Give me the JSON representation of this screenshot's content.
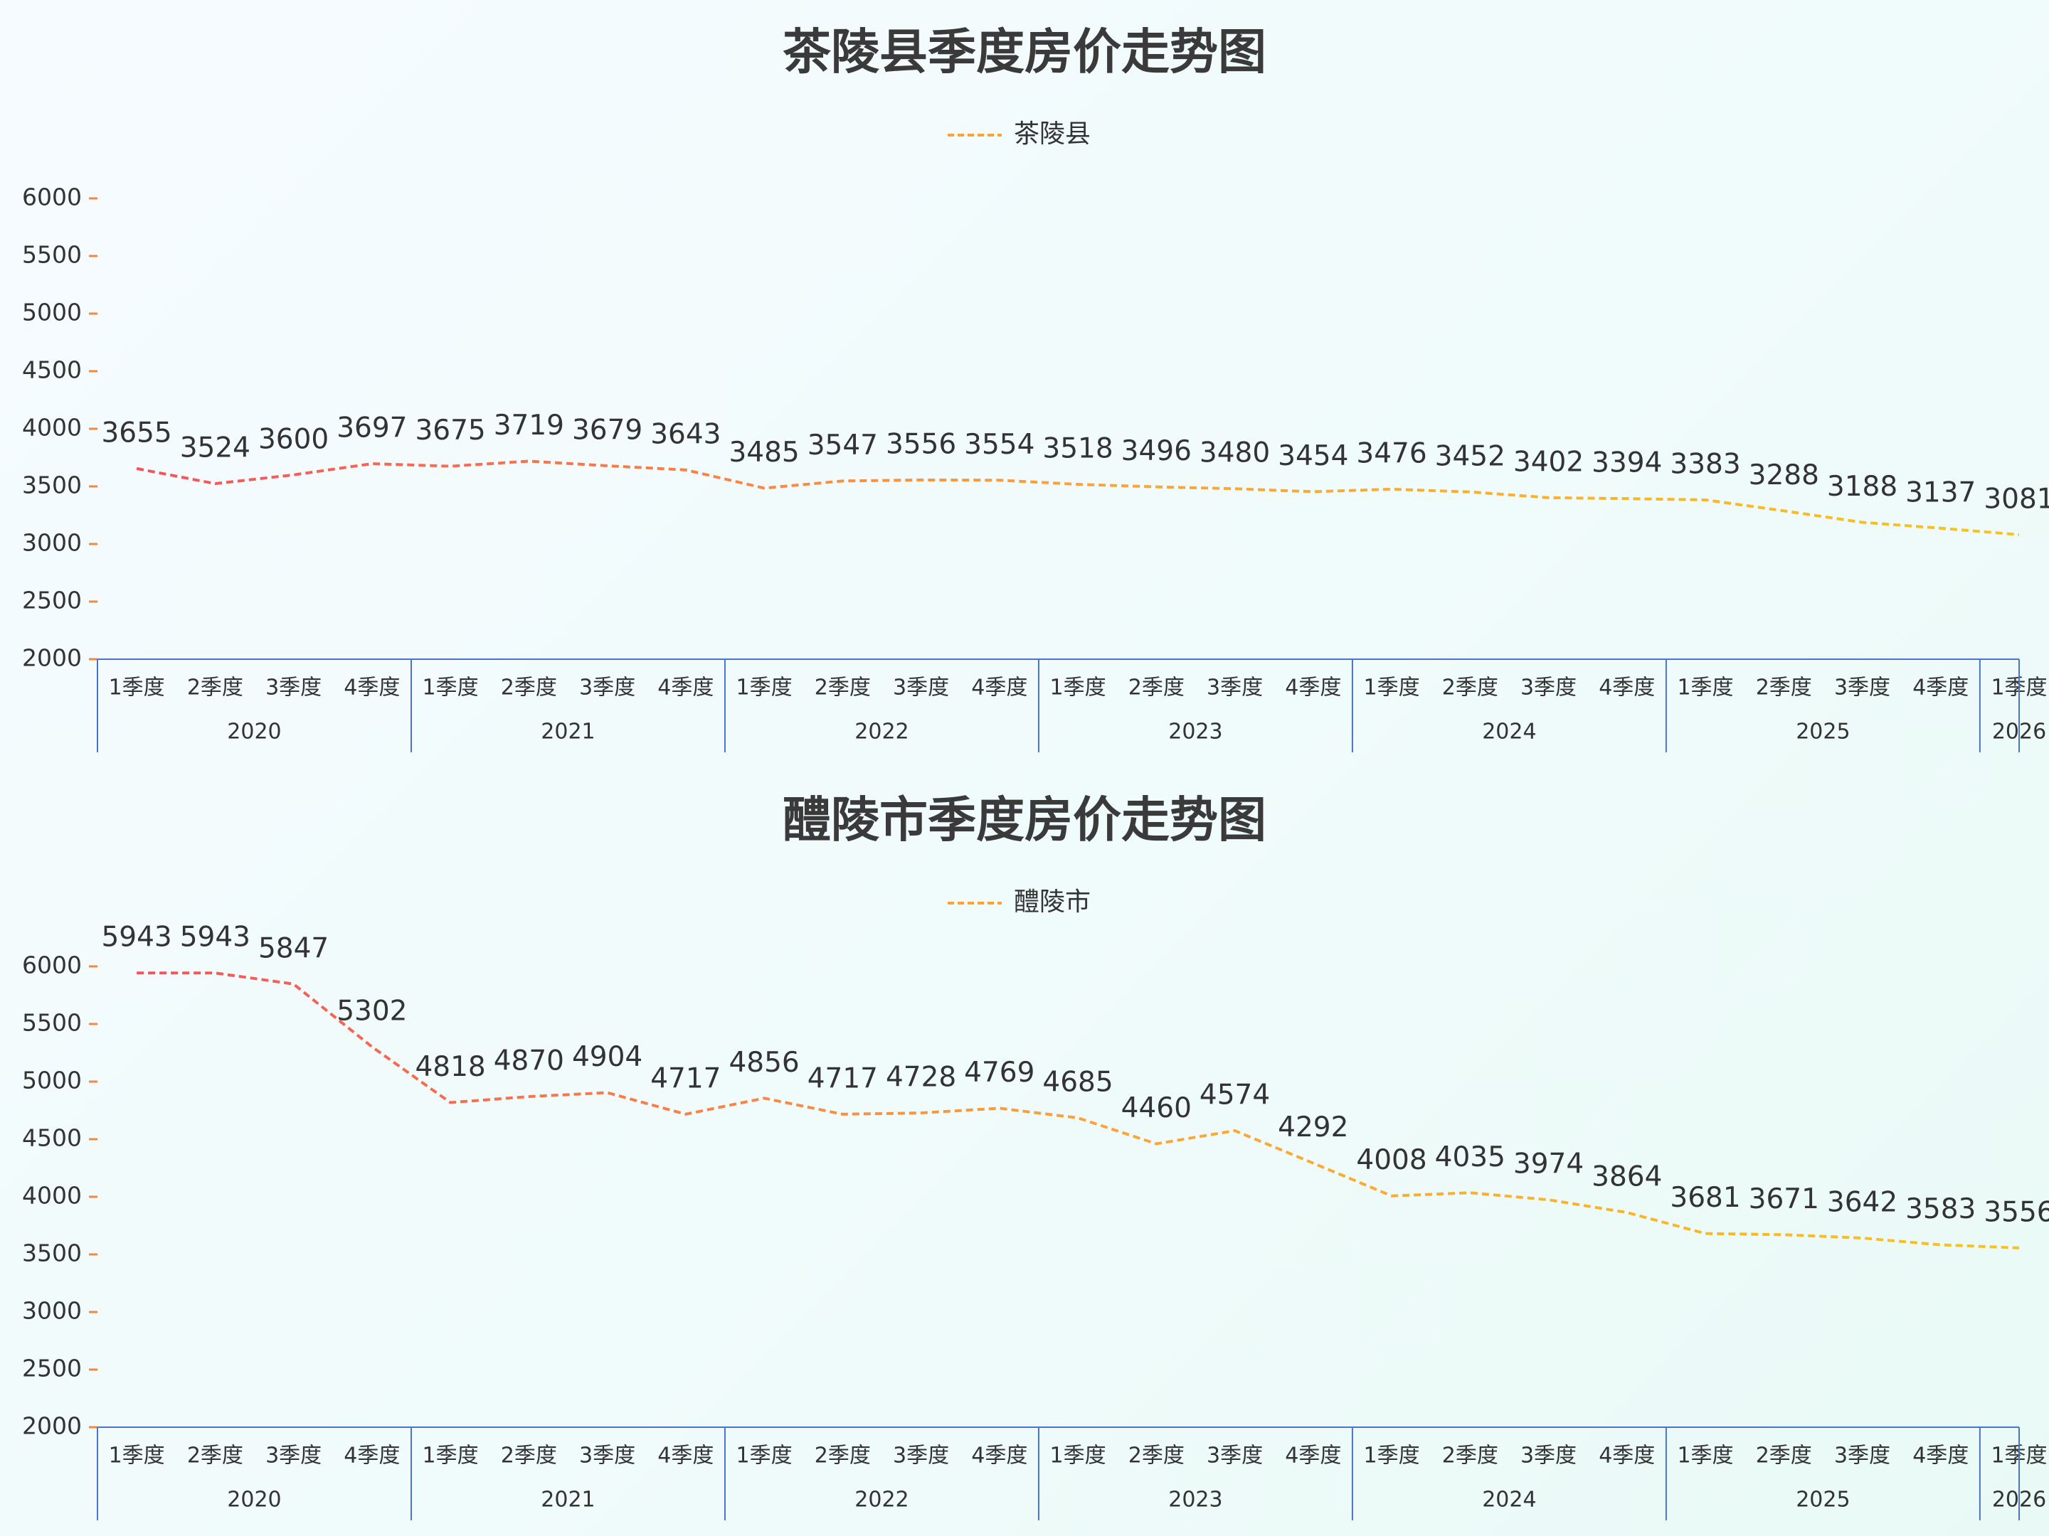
{
  "chart_data": [
    {
      "type": "line",
      "title": "茶陵县季度房价走势图",
      "legend": "茶陵县",
      "legend_position": "top-center",
      "quarter_labels": [
        "1季度",
        "2季度",
        "3季度",
        "4季度"
      ],
      "years": [
        "2020",
        "2021",
        "2022",
        "2023",
        "2024",
        "2025",
        "2026"
      ],
      "categories": [
        "2020 1季度",
        "2020 2季度",
        "2020 3季度",
        "2020 4季度",
        "2021 1季度",
        "2021 2季度",
        "2021 3季度",
        "2021 4季度",
        "2022 1季度",
        "2022 2季度",
        "2022 3季度",
        "2022 4季度",
        "2023 1季度",
        "2023 2季度",
        "2023 3季度",
        "2023 4季度",
        "2024 1季度",
        "2024 2季度",
        "2024 3季度",
        "2024 4季度",
        "2025 1季度",
        "2025 2季度",
        "2025 3季度",
        "2025 4季度",
        "2026 1季度"
      ],
      "series": [
        {
          "name": "茶陵县",
          "values": [
            3655,
            3524,
            3600,
            3697,
            3675,
            3719,
            3679,
            3643,
            3485,
            3547,
            3556,
            3554,
            3518,
            3496,
            3480,
            3454,
            3476,
            3452,
            3402,
            3394,
            3383,
            3288,
            3188,
            3137,
            3081
          ]
        }
      ],
      "yticks": [
        "2000",
        "2500",
        "3000",
        "3500",
        "4000",
        "4500",
        "5000",
        "5500",
        "6000"
      ],
      "ylim": [
        2000,
        6000
      ],
      "grid": false,
      "line_style": "dashed",
      "line_gradient": [
        "#f5525a",
        "#fba33a",
        "#f8c21f"
      ]
    },
    {
      "type": "line",
      "title": "醴陵市季度房价走势图",
      "legend": "醴陵市",
      "legend_position": "top-center",
      "quarter_labels": [
        "1季度",
        "2季度",
        "3季度",
        "4季度"
      ],
      "years": [
        "2020",
        "2021",
        "2022",
        "2023",
        "2024",
        "2025",
        "2026"
      ],
      "categories": [
        "2020 1季度",
        "2020 2季度",
        "2020 3季度",
        "2020 4季度",
        "2021 1季度",
        "2021 2季度",
        "2021 3季度",
        "2021 4季度",
        "2022 1季度",
        "2022 2季度",
        "2022 3季度",
        "2022 4季度",
        "2023 1季度",
        "2023 2季度",
        "2023 3季度",
        "2023 4季度",
        "2024 1季度",
        "2024 2季度",
        "2024 3季度",
        "2024 4季度",
        "2025 1季度",
        "2025 2季度",
        "2025 3季度",
        "2025 4季度",
        "2026 1季度"
      ],
      "series": [
        {
          "name": "醴陵市",
          "values": [
            5943,
            5943,
            5847,
            5302,
            4818,
            4870,
            4904,
            4717,
            4856,
            4717,
            4728,
            4769,
            4685,
            4460,
            4574,
            4292,
            4008,
            4035,
            3974,
            3864,
            3681,
            3671,
            3642,
            3583,
            3556
          ]
        }
      ],
      "yticks": [
        "2000",
        "2500",
        "3000",
        "3500",
        "4000",
        "4500",
        "5000",
        "5500",
        "6000"
      ],
      "ylim": [
        2000,
        6000
      ],
      "grid": false,
      "line_style": "dashed",
      "line_gradient": [
        "#f5525a",
        "#fba33a",
        "#f8c21f"
      ]
    }
  ],
  "colors": {
    "axis_blue": "#4a74c9",
    "axis_gradient_top": "#f5525a",
    "axis_gradient_bottom": "#f8c21f",
    "legend_line": "#fba33a"
  }
}
